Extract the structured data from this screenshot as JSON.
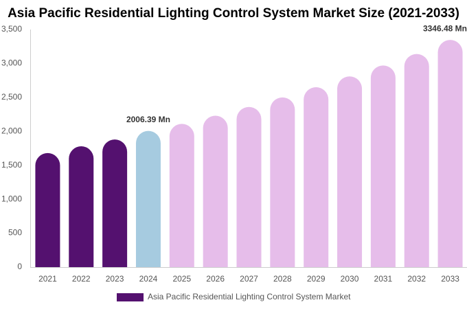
{
  "chart_data": {
    "type": "bar",
    "title": "Asia Pacific Residential Lighting Control System Market Size (2021-2033)",
    "categories": [
      "2021",
      "2022",
      "2023",
      "2024",
      "2025",
      "2026",
      "2027",
      "2028",
      "2029",
      "2030",
      "2031",
      "2032",
      "2033"
    ],
    "series": [
      {
        "name": "Asia Pacific Residential Lighting Control System Market",
        "color": "#54116f",
        "values": [
          1680,
          1780,
          1880,
          2006.39,
          2110,
          2230,
          2360,
          2500,
          2650,
          2810,
          2970,
          3140,
          3346.48
        ],
        "value_labels": [
          null,
          null,
          null,
          "2006.39 Mn",
          null,
          null,
          null,
          null,
          null,
          null,
          null,
          null,
          "3346.48 Mn"
        ],
        "colors": [
          "#54116f",
          "#54116f",
          "#54116f",
          "#a6cbe0",
          "#e6bdea",
          "#e6bdea",
          "#e6bdea",
          "#e6bdea",
          "#e6bdea",
          "#e6bdea",
          "#e6bdea",
          "#e6bdea",
          "#e6bdea"
        ]
      }
    ],
    "ylim": [
      0,
      3500
    ],
    "yticks": [
      0,
      500,
      {
        "value": 1000,
        "label": "1,000"
      },
      {
        "value": 1500,
        "label": "1,500"
      },
      {
        "value": 2000,
        "label": "2,000"
      },
      {
        "value": 2500,
        "label": "2,500"
      },
      {
        "value": 3000,
        "label": "3,000"
      },
      {
        "value": 3500,
        "label": "3,500"
      }
    ],
    "grid": false
  }
}
